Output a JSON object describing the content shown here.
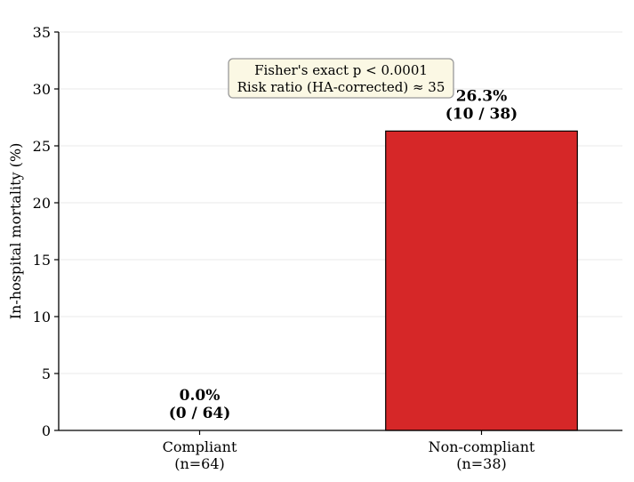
{
  "chart_data": {
    "type": "bar",
    "title": "",
    "xlabel": "",
    "ylabel": "In-hospital mortality (%)",
    "ylim": [
      0,
      35
    ],
    "yticks": [
      0,
      5,
      10,
      15,
      20,
      25,
      30,
      35
    ],
    "grid": "horizontal",
    "categories": [
      {
        "label": "Compliant",
        "sublabel": "(n=64)"
      },
      {
        "label": "Non-compliant",
        "sublabel": "(n=38)"
      }
    ],
    "values": [
      0.0,
      26.3
    ],
    "data_labels": [
      {
        "line1": "0.0%",
        "line2": "(0 / 64)"
      },
      {
        "line1": "26.3%",
        "line2": "(10 / 38)"
      }
    ],
    "bar_color": "#d62728",
    "annotation": {
      "line1": "Fisher's exact p < 0.0001",
      "line2": "Risk ratio (HA-corrected) ≈ 35",
      "background": "#fbf8e4",
      "border": "#999999"
    }
  }
}
